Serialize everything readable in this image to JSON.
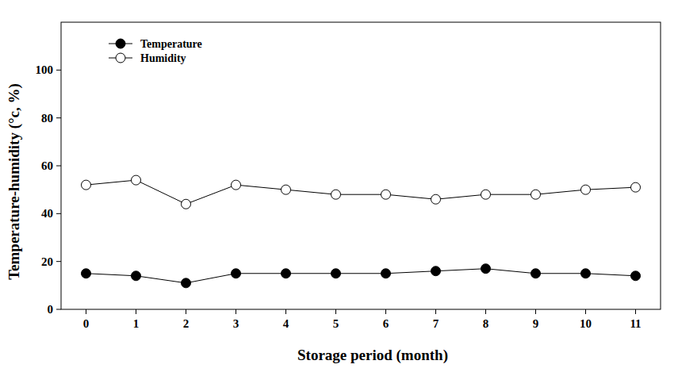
{
  "chart_data": {
    "type": "line",
    "x_label": "Storage period (month)",
    "y_label": "Temperature-humidity (°c, %)",
    "x": [
      0,
      1,
      2,
      3,
      4,
      5,
      6,
      7,
      8,
      9,
      10,
      11
    ],
    "xlim": [
      -0.5,
      11.5
    ],
    "xticks": [
      0,
      1,
      2,
      3,
      4,
      5,
      6,
      7,
      8,
      9,
      10,
      11
    ],
    "ylim": [
      0,
      120
    ],
    "yticks": [
      0,
      20,
      40,
      60,
      80,
      100
    ],
    "grid": false,
    "legend": "upper left",
    "series": [
      {
        "name": "Temperature",
        "color": "#000000",
        "marker": "circle",
        "values": [
          15,
          14,
          11,
          15,
          15,
          15,
          15,
          16,
          17,
          15,
          15,
          14
        ]
      },
      {
        "name": "Humidity",
        "color": "#000000",
        "marker": "circle-open",
        "values": [
          52,
          54,
          44,
          52,
          50,
          48,
          48,
          46,
          48,
          48,
          50,
          51
        ]
      }
    ]
  }
}
